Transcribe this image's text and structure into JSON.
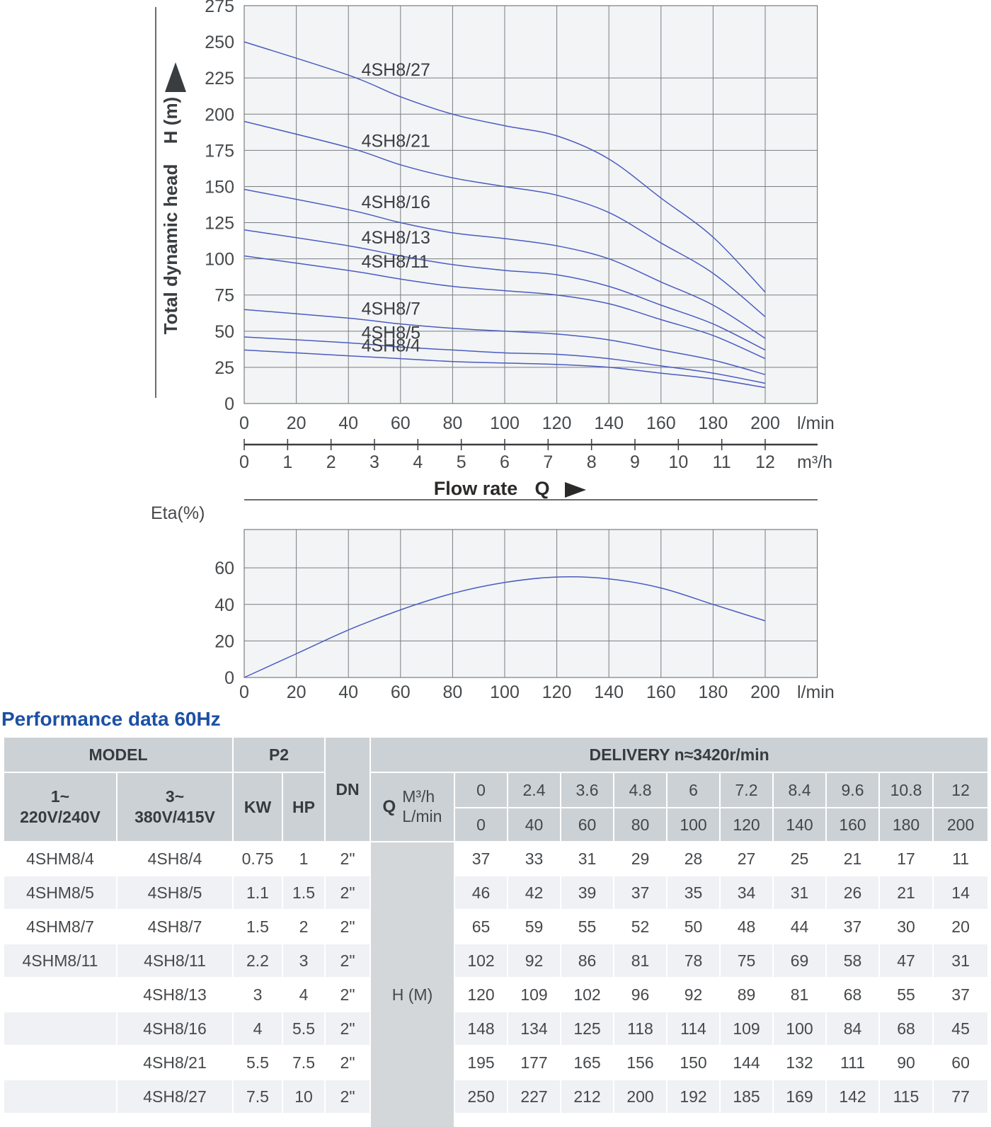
{
  "section_title": "Performance data 60Hz",
  "colors": {
    "accent": "#1c50a5",
    "curve": "#4a5cc0",
    "grid": "#7a7d80",
    "plot_bg": "#f3f4f6",
    "axis": "#3a3d40",
    "text": "#46494c",
    "label_text": "#3b3e42",
    "table_header_bg": "#ccd1d5",
    "table_stripe": "#eff1f4",
    "table_hband": "#d3d7da"
  },
  "chart_data": [
    {
      "type": "line",
      "id": "head-curves",
      "ylabel_primary": "H (m)",
      "ylabel_secondary": "Total dynamic head",
      "xlabel": "Flow rate",
      "xlabel_symbol": "Q",
      "ylim": [
        0,
        275
      ],
      "xlim_lmin": [
        0,
        220
      ],
      "y_ticks": [
        0,
        25,
        50,
        75,
        100,
        125,
        150,
        175,
        200,
        225,
        250,
        275
      ],
      "y_gridlines": [
        25,
        50,
        75,
        100,
        125,
        150,
        175,
        200,
        225
      ],
      "x_ticks_lmin": [
        0,
        20,
        40,
        60,
        80,
        100,
        120,
        140,
        160,
        180,
        200
      ],
      "x_ticks_m3h": [
        0,
        1,
        2,
        3,
        4,
        5,
        6,
        7,
        8,
        9,
        10,
        11,
        12
      ],
      "x_unit_lmin": "l/min",
      "x_unit_m3h": "m³/h",
      "x_lmin": [
        0,
        40,
        60,
        80,
        100,
        120,
        140,
        160,
        180,
        200
      ],
      "series": [
        {
          "name": "4SH8/27",
          "values": [
            250,
            227,
            212,
            200,
            192,
            185,
            169,
            142,
            115,
            77
          ]
        },
        {
          "name": "4SH8/21",
          "values": [
            195,
            177,
            165,
            156,
            150,
            144,
            132,
            111,
            90,
            60
          ]
        },
        {
          "name": "4SH8/16",
          "values": [
            148,
            134,
            125,
            118,
            114,
            109,
            100,
            84,
            68,
            45
          ]
        },
        {
          "name": "4SH8/13",
          "values": [
            120,
            109,
            102,
            96,
            92,
            89,
            81,
            68,
            55,
            37
          ]
        },
        {
          "name": "4SH8/11",
          "values": [
            102,
            92,
            86,
            81,
            78,
            75,
            69,
            58,
            47,
            31
          ]
        },
        {
          "name": "4SH8/7",
          "values": [
            65,
            59,
            55,
            52,
            50,
            48,
            44,
            37,
            30,
            20
          ]
        },
        {
          "name": "4SH8/5",
          "values": [
            46,
            42,
            39,
            37,
            35,
            34,
            31,
            26,
            21,
            14
          ]
        },
        {
          "name": "4SH8/4",
          "values": [
            37,
            33,
            31,
            29,
            28,
            27,
            25,
            21,
            17,
            11
          ]
        }
      ]
    },
    {
      "type": "line",
      "id": "efficiency",
      "title": "Eta(%)",
      "ylim": [
        0,
        81
      ],
      "xlim_lmin": [
        0,
        220
      ],
      "y_ticks": [
        0,
        20,
        40,
        60
      ],
      "x_ticks_lmin": [
        0,
        20,
        40,
        60,
        80,
        100,
        120,
        140,
        160,
        180,
        200
      ],
      "x_unit_lmin": "l/min",
      "x_lmin": [
        0,
        20,
        40,
        60,
        80,
        100,
        120,
        140,
        160,
        180,
        200
      ],
      "values": [
        0,
        13,
        26,
        37,
        46,
        52,
        55,
        54,
        49,
        40,
        31
      ]
    }
  ],
  "table": {
    "header": {
      "model": "MODEL",
      "p2": "P2",
      "dn": "DN",
      "delivery": "DELIVERY  n≈3420r/min",
      "phase1_line1": "1~",
      "phase1_line2": "220V/240V",
      "phase3_line1": "3~",
      "phase3_line2": "380V/415V",
      "kw": "KW",
      "hp": "HP",
      "q": "Q",
      "m3h": "M³/h",
      "lmin": "L/min"
    },
    "flow_m3h": [
      "0",
      "2.4",
      "3.6",
      "4.8",
      "6",
      "7.2",
      "8.4",
      "9.6",
      "10.8",
      "12"
    ],
    "flow_lmin": [
      "0",
      "40",
      "60",
      "80",
      "100",
      "120",
      "140",
      "160",
      "180",
      "200"
    ],
    "h_label": "H (M)",
    "rows": [
      {
        "model_1ph": "4SHM8/4",
        "model_3ph": "4SH8/4",
        "kw": "0.75",
        "hp": "1",
        "dn": "2\"",
        "h": [
          "37",
          "33",
          "31",
          "29",
          "28",
          "27",
          "25",
          "21",
          "17",
          "11"
        ]
      },
      {
        "model_1ph": "4SHM8/5",
        "model_3ph": "4SH8/5",
        "kw": "1.1",
        "hp": "1.5",
        "dn": "2\"",
        "h": [
          "46",
          "42",
          "39",
          "37",
          "35",
          "34",
          "31",
          "26",
          "21",
          "14"
        ]
      },
      {
        "model_1ph": "4SHM8/7",
        "model_3ph": "4SH8/7",
        "kw": "1.5",
        "hp": "2",
        "dn": "2\"",
        "h": [
          "65",
          "59",
          "55",
          "52",
          "50",
          "48",
          "44",
          "37",
          "30",
          "20"
        ]
      },
      {
        "model_1ph": "4SHM8/11",
        "model_3ph": "4SH8/11",
        "kw": "2.2",
        "hp": "3",
        "dn": "2\"",
        "h": [
          "102",
          "92",
          "86",
          "81",
          "78",
          "75",
          "69",
          "58",
          "47",
          "31"
        ]
      },
      {
        "model_1ph": "",
        "model_3ph": "4SH8/13",
        "kw": "3",
        "hp": "4",
        "dn": "2\"",
        "h": [
          "120",
          "109",
          "102",
          "96",
          "92",
          "89",
          "81",
          "68",
          "55",
          "37"
        ]
      },
      {
        "model_1ph": "",
        "model_3ph": "4SH8/16",
        "kw": "4",
        "hp": "5.5",
        "dn": "2\"",
        "h": [
          "148",
          "134",
          "125",
          "118",
          "114",
          "109",
          "100",
          "84",
          "68",
          "45"
        ]
      },
      {
        "model_1ph": "",
        "model_3ph": "4SH8/21",
        "kw": "5.5",
        "hp": "7.5",
        "dn": "2\"",
        "h": [
          "195",
          "177",
          "165",
          "156",
          "150",
          "144",
          "132",
          "111",
          "90",
          "60"
        ]
      },
      {
        "model_1ph": "",
        "model_3ph": "4SH8/27",
        "kw": "7.5",
        "hp": "10",
        "dn": "2\"",
        "h": [
          "250",
          "227",
          "212",
          "200",
          "192",
          "185",
          "169",
          "142",
          "115",
          "77"
        ]
      }
    ]
  }
}
